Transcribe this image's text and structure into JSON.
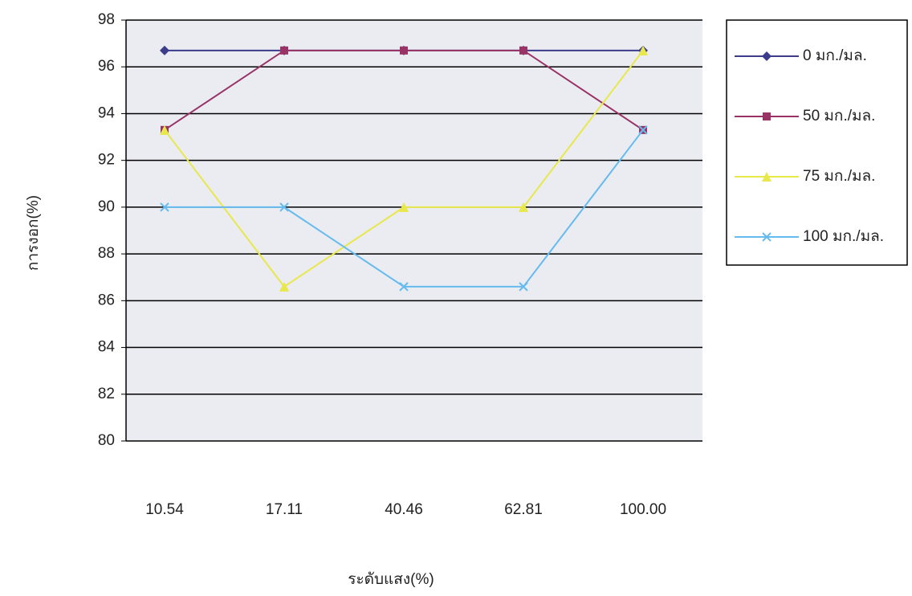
{
  "chart_data": {
    "type": "line",
    "x_label": "ระดับแสง(%)",
    "y_label": "การงอก(%)",
    "categories": [
      "10.54",
      "17.11",
      "40.46",
      "62.81",
      "100.00"
    ],
    "series": [
      {
        "name": "0 มก./มล.",
        "color": "#3c3c8c",
        "marker": "diamond",
        "values": [
          96.7,
          96.7,
          96.7,
          96.7,
          96.7
        ]
      },
      {
        "name": "50 มก./มล.",
        "color": "#993366",
        "marker": "square",
        "values": [
          93.3,
          96.7,
          96.7,
          96.7,
          93.3
        ]
      },
      {
        "name": "75 มก./มล.",
        "color": "#e8e84a",
        "marker": "triangle",
        "values": [
          93.3,
          86.6,
          90,
          90,
          96.7
        ]
      },
      {
        "name": "100 มก./มล.",
        "color": "#66bbee",
        "marker": "x",
        "values": [
          90,
          90,
          86.6,
          86.6,
          93.3
        ]
      }
    ],
    "ylim": [
      80,
      98
    ],
    "yticks": [
      80,
      82,
      84,
      86,
      88,
      90,
      92,
      94,
      96,
      98
    ],
    "grid": true
  }
}
